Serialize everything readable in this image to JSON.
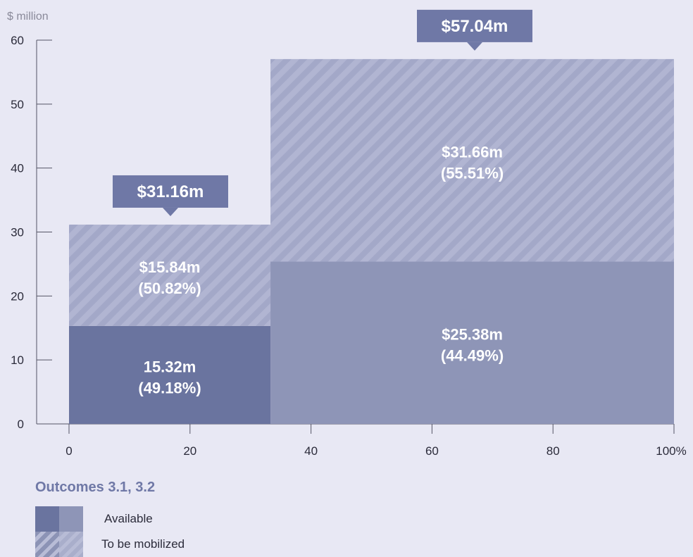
{
  "chart_data": {
    "type": "marimekko",
    "unit_label": "$ million",
    "y_ticks": [
      "0",
      "10",
      "20",
      "30",
      "40",
      "50",
      "60"
    ],
    "x_ticks": [
      "0",
      "20",
      "40",
      "60",
      "80",
      "100%"
    ],
    "ylim": [
      0,
      60
    ],
    "xlim": [
      0,
      100
    ],
    "columns": [
      {
        "x_start": 0,
        "x_end": 33.3,
        "total": 31.16,
        "total_label": "$31.16m",
        "segments": [
          {
            "series": "Available",
            "value": 15.32,
            "label_line1": "15.32m",
            "label_line2": "(49.18%)"
          },
          {
            "series": "To be mobilized",
            "value": 15.84,
            "label_line1": "$15.84m",
            "label_line2": "(50.82%)"
          }
        ]
      },
      {
        "x_start": 33.3,
        "x_end": 100,
        "total": 57.04,
        "total_label": "$57.04m",
        "segments": [
          {
            "series": "Available",
            "value": 25.38,
            "label_line1": "$25.38m",
            "label_line2": "(44.49%)"
          },
          {
            "series": "To be mobilized",
            "value": 31.66,
            "label_line1": "$31.66m",
            "label_line2": "(55.51%)"
          }
        ]
      }
    ]
  },
  "legend": {
    "title": "Outcomes  3.1, 3.2",
    "items": [
      {
        "label": "Available",
        "colors": [
          "#6a749f",
          "#8e95b7"
        ]
      },
      {
        "label": "To be mobilized",
        "colors": [
          "#8c93b5",
          "#a9aecb"
        ]
      }
    ]
  },
  "colors": {
    "col1_available": "#6a749f",
    "col2_available": "#8e95b7",
    "mobilized": "#a3a8c8",
    "callout": "#6f78a6",
    "axis": "#555566"
  }
}
